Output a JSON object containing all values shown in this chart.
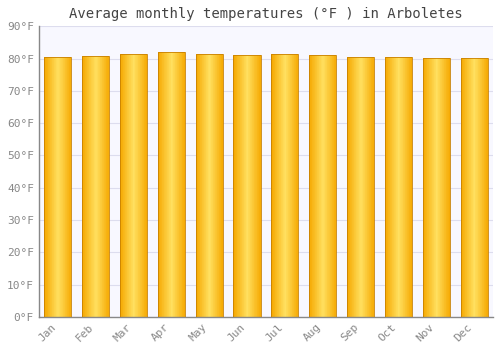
{
  "title": "Average monthly temperatures (°F ) in Arboletes",
  "months": [
    "Jan",
    "Feb",
    "Mar",
    "Apr",
    "May",
    "Jun",
    "Jul",
    "Aug",
    "Sep",
    "Oct",
    "Nov",
    "Dec"
  ],
  "values": [
    80.6,
    80.8,
    81.5,
    82.0,
    81.5,
    81.0,
    81.3,
    81.1,
    80.6,
    80.4,
    80.1,
    80.2
  ],
  "bar_color_center": "#FFE060",
  "bar_color_edge": "#F5A800",
  "bar_edge_color": "#C88000",
  "ylim": [
    0,
    90
  ],
  "ytick_step": 10,
  "background_color": "#FFFFFF",
  "plot_bg_color": "#F8F8FF",
  "grid_color": "#DDDDEE",
  "title_fontsize": 10,
  "tick_fontsize": 8,
  "font_family": "monospace"
}
